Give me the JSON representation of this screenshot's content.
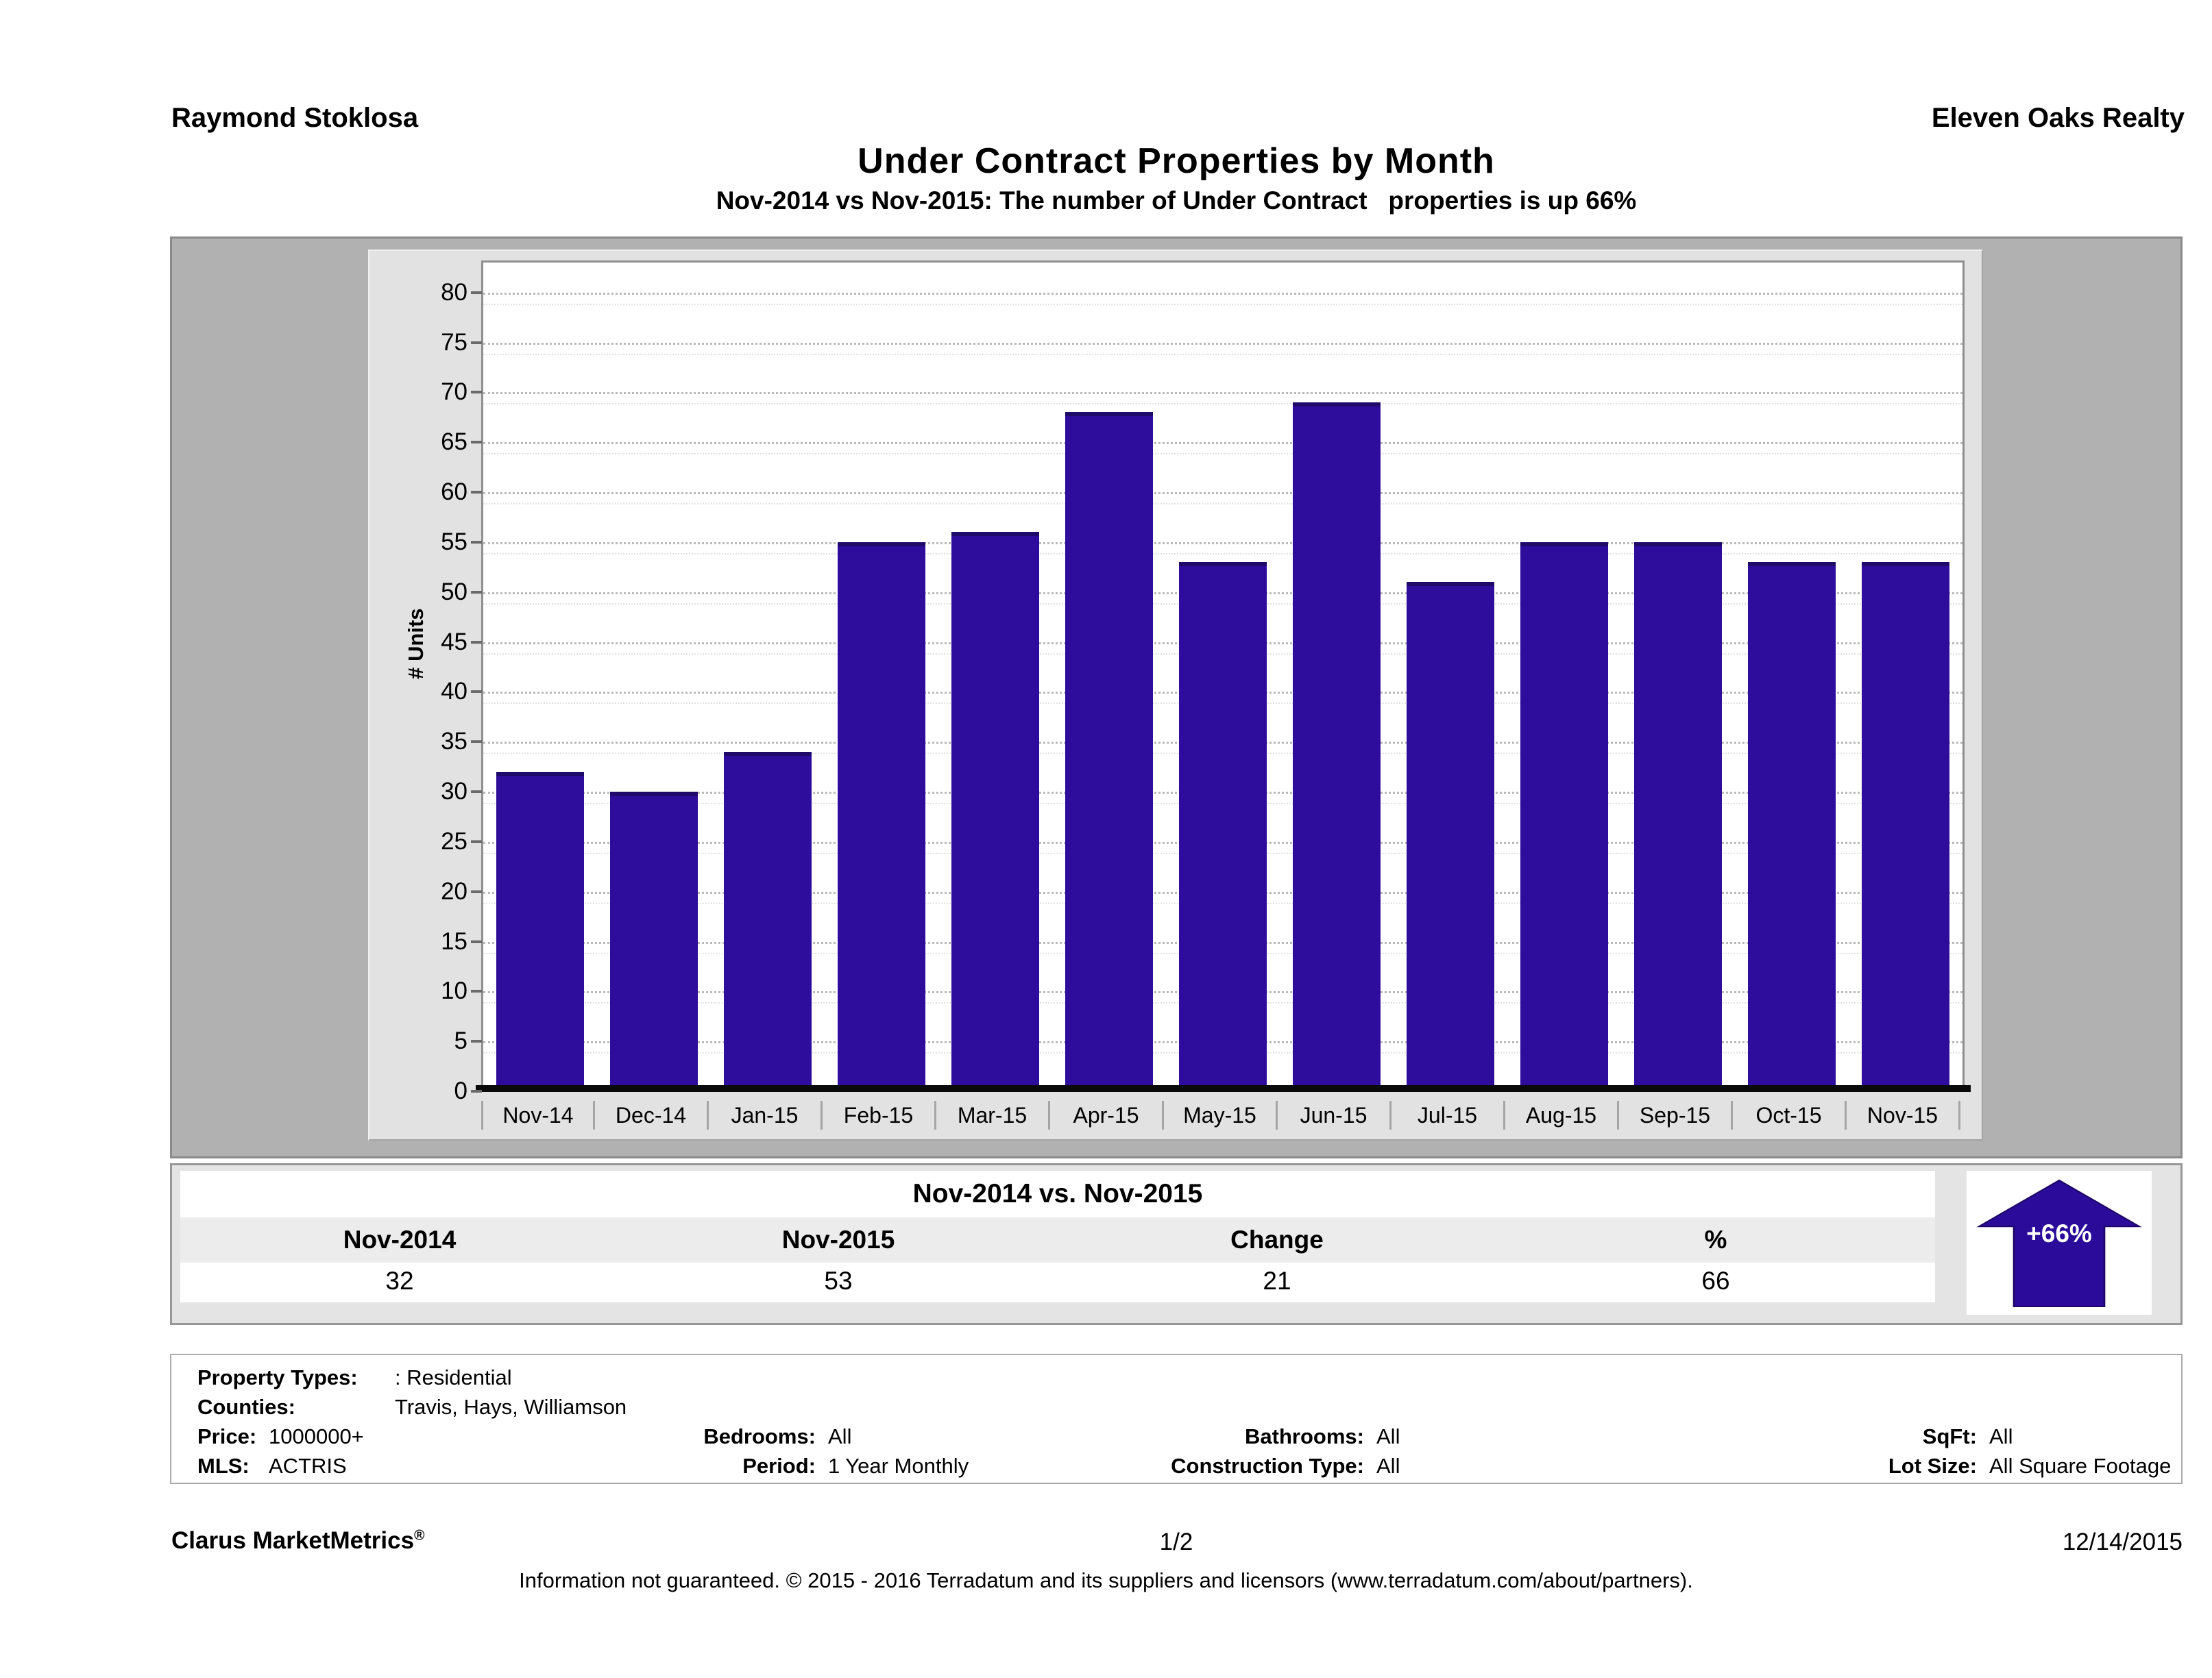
{
  "header": {
    "agent": "Raymond Stoklosa",
    "company": "Eleven Oaks Realty"
  },
  "title": "Under Contract Properties by Month",
  "subtitle": "Nov-2014 vs Nov-2015: The number of Under Contract   properties is up 66%",
  "chart_data": {
    "type": "bar",
    "title": "Under Contract Properties by Month",
    "categories": [
      "Nov-14",
      "Dec-14",
      "Jan-15",
      "Feb-15",
      "Mar-15",
      "Apr-15",
      "May-15",
      "Jun-15",
      "Jul-15",
      "Aug-15",
      "Sep-15",
      "Oct-15",
      "Nov-15"
    ],
    "values": [
      32,
      30,
      34,
      55,
      56,
      68,
      53,
      69,
      51,
      55,
      55,
      53,
      53
    ],
    "xlabel": "",
    "ylabel": "# Units",
    "ylim": [
      0,
      80
    ],
    "yticks": [
      0,
      5,
      10,
      15,
      20,
      25,
      30,
      35,
      40,
      45,
      50,
      55,
      60,
      65,
      70,
      75,
      80
    ],
    "grid": "horizontal-dotted",
    "legend": "none",
    "bar_color": "#2e0d9c"
  },
  "summary_table": {
    "title": "Nov-2014 vs. Nov-2015",
    "columns": [
      "Nov-2014",
      "Nov-2015",
      "Change",
      "%"
    ],
    "values": [
      "32",
      "53",
      "21",
      "66"
    ],
    "badge": {
      "label": "+66%",
      "direction": "up",
      "color": "#2b0b9a"
    }
  },
  "filters": {
    "rows": [
      [
        {
          "label": "Property Types:",
          "value": ": Residential"
        }
      ],
      [
        {
          "label": "Counties:",
          "value": "Travis, Hays, Williamson"
        }
      ],
      [
        {
          "label": "Price:",
          "value": "1000000+"
        },
        {
          "label": "Bedrooms:",
          "value": "All"
        },
        {
          "label": "Bathrooms:",
          "value": "All"
        },
        {
          "label": "SqFt:",
          "value": "All"
        }
      ],
      [
        {
          "label": "MLS:",
          "value": "ACTRIS"
        },
        {
          "label": "Period:",
          "value": "1 Year Monthly"
        },
        {
          "label": "Construction Type:",
          "value": "All"
        },
        {
          "label": "Lot Size:",
          "value": "All Square Footage"
        }
      ]
    ]
  },
  "footer": {
    "product": "Clarus MarketMetrics",
    "reg_mark": "®",
    "page": "1/2",
    "date": "12/14/2015",
    "disclaimer": "Information not guaranteed. © 2015 - 2016 Terradatum and its suppliers and licensors (www.terradatum.com/about/partners)."
  }
}
